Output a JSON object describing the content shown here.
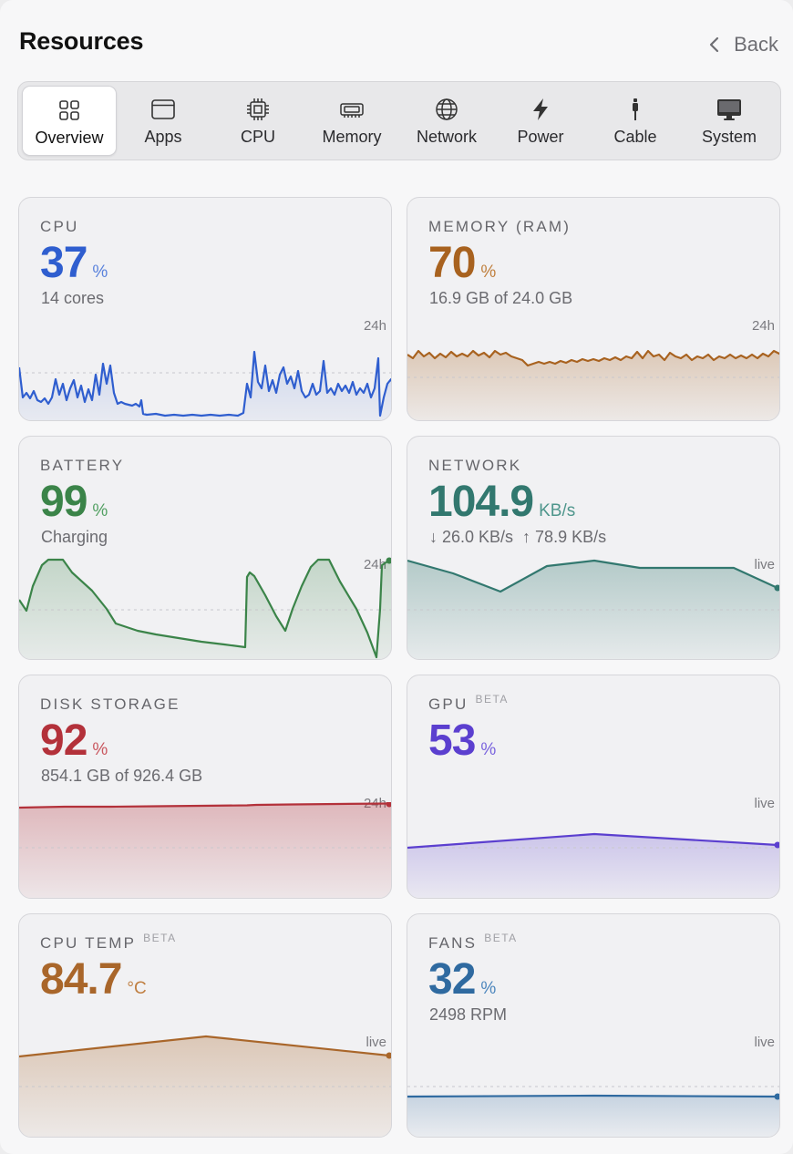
{
  "header": {
    "title": "Resources",
    "back_label": "Back"
  },
  "tabs": [
    {
      "label": "Overview",
      "icon": "grid-icon",
      "active": true
    },
    {
      "label": "Apps",
      "icon": "window-icon"
    },
    {
      "label": "CPU",
      "icon": "chip-icon"
    },
    {
      "label": "Memory",
      "icon": "memory-icon"
    },
    {
      "label": "Network",
      "icon": "globe-icon"
    },
    {
      "label": "Power",
      "icon": "bolt-icon"
    },
    {
      "label": "Cable",
      "icon": "cable-icon"
    },
    {
      "label": "System",
      "icon": "monitor-icon"
    }
  ],
  "cards": {
    "cpu": {
      "label": "CPU",
      "value": "37",
      "unit": "%",
      "sub": "14 cores",
      "range": "24h",
      "color": "#2f5ecf"
    },
    "memory": {
      "label": "MEMORY (RAM)",
      "value": "70",
      "unit": "%",
      "sub": "16.9 GB of 24.0 GB",
      "range": "24h",
      "color": "#a8621f"
    },
    "battery": {
      "label": "BATTERY",
      "value": "99",
      "unit": "%",
      "sub": "Charging",
      "range": "24h",
      "color": "#3b8449"
    },
    "network": {
      "label": "NETWORK",
      "value": "104.9",
      "unit": "KB/s",
      "sub": "↓ 26.0 KB/s  ↑ 78.9 KB/s",
      "range": "live",
      "color": "#32786f"
    },
    "disk": {
      "label": "DISK STORAGE",
      "value": "92",
      "unit": "%",
      "sub": "854.1 GB of 926.4 GB",
      "range": "24h",
      "color": "#b3313a"
    },
    "gpu": {
      "label": "GPU",
      "beta": "BETA",
      "value": "53",
      "unit": "%",
      "range": "live",
      "color": "#5b3fcf"
    },
    "cputemp": {
      "label": "CPU TEMP",
      "beta": "BETA",
      "value": "84.7",
      "unit": "°C",
      "range": "live",
      "color": "#a9662a"
    },
    "fans": {
      "label": "FANS",
      "beta": "BETA",
      "value": "32",
      "unit": "%",
      "sub": "2498 RPM",
      "range": "live",
      "color": "#2f6aa0"
    }
  }
}
